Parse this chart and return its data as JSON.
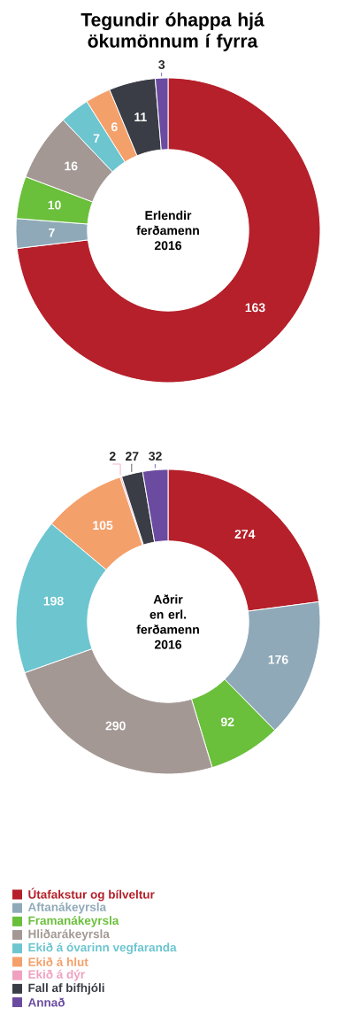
{
  "chart_data": {
    "type": "donut",
    "title": "Tegundir óhappa hjá ökumönnum í fyrra",
    "categories": [
      "Útafakstur og bílveltur",
      "Aftanákeyrsla",
      "Framanákeyrsla",
      "Hliðarákeyrsla",
      "Ekið á óvarinn vegfaranda",
      "Ekið á hlut",
      "Ekið á dýr",
      "Fall af bifhjóli",
      "Annað"
    ],
    "colors": [
      "#b5202a",
      "#8fa9b8",
      "#6abf3b",
      "#a39894",
      "#6cc5cf",
      "#f4a06b",
      "#f0a0c0",
      "#3a3d45",
      "#6a4ba0"
    ],
    "legend": "bottom",
    "series": [
      {
        "name": "Erlendir ferðamenn 2016",
        "values": [
          163,
          7,
          10,
          16,
          7,
          6,
          0,
          11,
          3
        ],
        "value_labels": [
          "163",
          "7",
          "10",
          "16",
          "7",
          "6",
          null,
          "11",
          "3"
        ]
      },
      {
        "name": "Aðrir en erl. ferðamenn 2016",
        "values": [
          274,
          176,
          92,
          290,
          198,
          105,
          2,
          27,
          32
        ],
        "value_labels": [
          "274",
          "176",
          "92",
          "290",
          "198",
          "105",
          "2",
          "27",
          "32"
        ]
      }
    ]
  }
}
